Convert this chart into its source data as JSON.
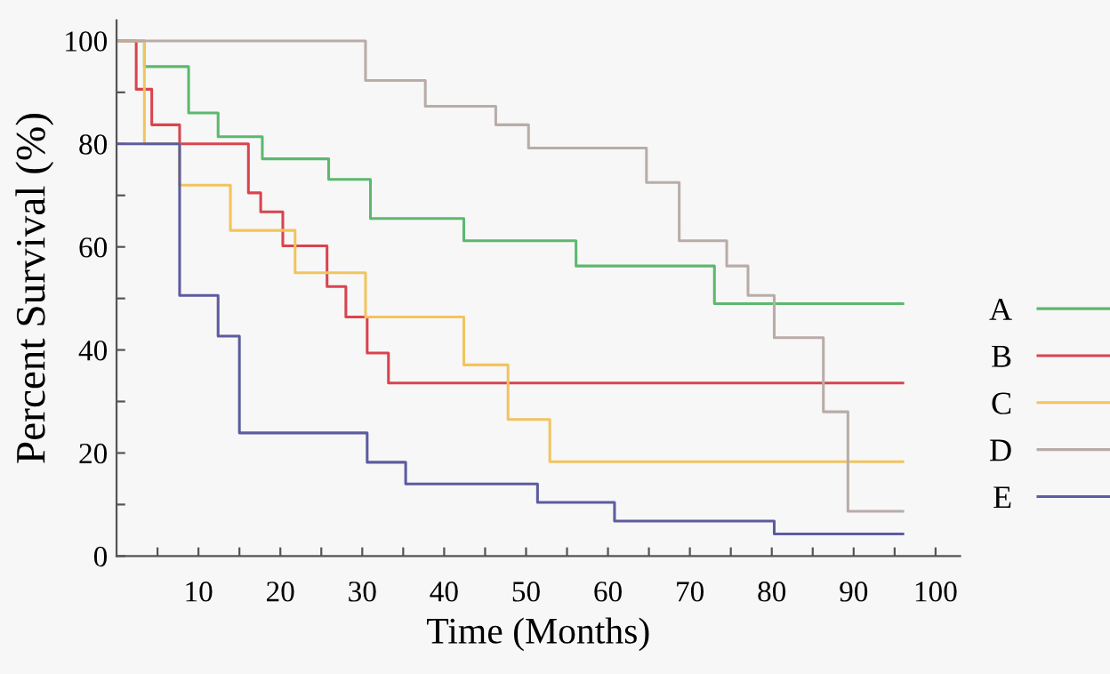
{
  "chart_data": {
    "type": "step",
    "xlabel": "Time (Months)",
    "ylabel": "Percent Survival (%)",
    "xlim": [
      0,
      103
    ],
    "ylim": [
      0,
      104
    ],
    "xticks": [
      {
        "value": 5,
        "label": null
      },
      10,
      {
        "value": 15,
        "label": null
      },
      20,
      {
        "value": 25,
        "label": null
      },
      30,
      {
        "value": 35,
        "label": null
      },
      40,
      {
        "value": 45,
        "label": null
      },
      50,
      {
        "value": 55,
        "label": null
      },
      60,
      {
        "value": 65,
        "label": null
      },
      70,
      {
        "value": 75,
        "label": null
      },
      80,
      {
        "value": 85,
        "label": null
      },
      90,
      {
        "value": 95,
        "label": null
      },
      100
    ],
    "yticks": [
      0,
      {
        "value": 10,
        "label": null
      },
      20,
      {
        "value": 30,
        "label": null
      },
      40,
      {
        "value": 50,
        "label": null
      },
      60,
      {
        "value": 70,
        "label": null
      },
      80,
      {
        "value": 90,
        "label": null
      },
      100
    ],
    "grid": false,
    "legend": "right",
    "series": [
      {
        "name": "A",
        "color": "#5cb86e",
        "x": [
          0,
          3.4,
          8.8,
          12.4,
          17.8,
          25.9,
          31,
          42.4,
          56.1,
          73,
          96
        ],
        "values": [
          100,
          95,
          86,
          81.4,
          77.1,
          73.1,
          65.5,
          61.2,
          56.3,
          49,
          49
        ]
      },
      {
        "name": "B",
        "color": "#d9444e",
        "x": [
          0,
          2.4,
          4.3,
          7.7,
          16.1,
          17.6,
          20.3,
          25.7,
          28,
          30.6,
          33.2,
          96
        ],
        "values": [
          100,
          90.6,
          83.7,
          80,
          70.5,
          66.8,
          60.2,
          52.3,
          46.4,
          39.4,
          33.6,
          33.6
        ]
      },
      {
        "name": "C",
        "color": "#f2c45e",
        "x": [
          0,
          3.4,
          7.7,
          13.9,
          21.8,
          30.4,
          42.4,
          47.8,
          52.9,
          96
        ],
        "values": [
          100,
          80,
          72,
          63.2,
          55,
          46.4,
          37.1,
          26.5,
          18.3,
          18.3
        ]
      },
      {
        "name": "D",
        "color": "#b9aca8",
        "x": [
          0,
          30.4,
          37.7,
          46.3,
          50.3,
          64.7,
          68.7,
          74.5,
          77.1,
          80.3,
          86.3,
          89.3,
          96
        ],
        "values": [
          100,
          92.3,
          87.3,
          83.7,
          79.2,
          72.5,
          61.2,
          56.3,
          50.6,
          42.4,
          28,
          8.7,
          8.7
        ]
      },
      {
        "name": "E",
        "color": "#5c5ca0",
        "x": [
          0,
          7.7,
          12.4,
          15,
          30.6,
          35.3,
          51.4,
          60.8,
          80.3,
          96
        ],
        "values": [
          80,
          50.6,
          42.7,
          23.9,
          18.2,
          14,
          10.4,
          6.8,
          4.3,
          4.3
        ]
      }
    ]
  }
}
